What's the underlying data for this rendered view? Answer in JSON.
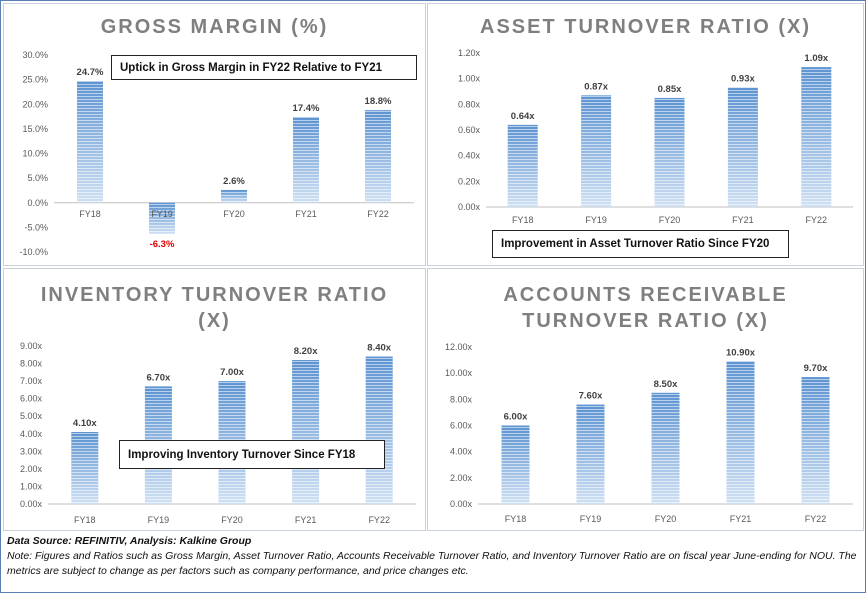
{
  "colors": {
    "bar_top": "#cfe0f3",
    "bar_bottom": "#5d93d1",
    "bar_stripe": "#ffffff",
    "axis": "#bfbfbf",
    "negative_label": "#e00000"
  },
  "chart_data": [
    {
      "id": "gross_margin",
      "type": "bar",
      "title": "GROSS MARGIN (%)",
      "categories": [
        "FY18",
        "FY19",
        "FY20",
        "FY21",
        "FY22"
      ],
      "values": [
        24.7,
        -6.3,
        2.6,
        17.4,
        18.8
      ],
      "data_labels": [
        "24.7%",
        "-6.3%",
        "2.6%",
        "17.4%",
        "18.8%"
      ],
      "ylim": [
        -10,
        30
      ],
      "yticks": [
        -10,
        -5,
        0,
        5,
        10,
        15,
        20,
        25,
        30
      ],
      "ytick_labels": [
        "-10.0%",
        "-5.0%",
        "0.0%",
        "5.0%",
        "10.0%",
        "15.0%",
        "20.0%",
        "25.0%",
        "30.0%"
      ],
      "annotation": "Uptick in Gross Margin in FY22 Relative to FY21"
    },
    {
      "id": "asset_turnover",
      "type": "bar",
      "title": "ASSET TURNOVER RATIO (X)",
      "categories": [
        "FY18",
        "FY19",
        "FY20",
        "FY21",
        "FY22"
      ],
      "values": [
        0.64,
        0.87,
        0.85,
        0.93,
        1.09
      ],
      "data_labels": [
        "0.64x",
        "0.87x",
        "0.85x",
        "0.93x",
        "1.09x"
      ],
      "ylim": [
        0,
        1.2
      ],
      "yticks": [
        0,
        0.2,
        0.4,
        0.6,
        0.8,
        1.0,
        1.2
      ],
      "ytick_labels": [
        "0.00x",
        "0.20x",
        "0.40x",
        "0.60x",
        "0.80x",
        "1.00x",
        "1.20x"
      ],
      "annotation": "Improvement in Asset Turnover Ratio Since FY20"
    },
    {
      "id": "inventory_turnover",
      "type": "bar",
      "title_lines": [
        "INVENTORY TURNOVER RATIO",
        "(X)"
      ],
      "categories": [
        "FY18",
        "FY19",
        "FY20",
        "FY21",
        "FY22"
      ],
      "values": [
        4.1,
        6.7,
        7.0,
        8.2,
        8.4
      ],
      "data_labels": [
        "4.10x",
        "6.70x",
        "7.00x",
        "8.20x",
        "8.40x"
      ],
      "ylim": [
        0,
        9
      ],
      "yticks": [
        0,
        1,
        2,
        3,
        4,
        5,
        6,
        7,
        8,
        9
      ],
      "ytick_labels": [
        "0.00x",
        "1.00x",
        "2.00x",
        "3.00x",
        "4.00x",
        "5.00x",
        "6.00x",
        "7.00x",
        "8.00x",
        "9.00x"
      ],
      "annotation": "Improving Inventory Turnover Since FY18"
    },
    {
      "id": "receivable_turnover",
      "type": "bar",
      "title_lines": [
        "ACCOUNTS RECEIVABLE",
        "TURNOVER RATIO (X)"
      ],
      "categories": [
        "FY18",
        "FY19",
        "FY20",
        "FY21",
        "FY22"
      ],
      "values": [
        6.0,
        7.6,
        8.5,
        10.9,
        9.7
      ],
      "data_labels": [
        "6.00x",
        "7.60x",
        "8.50x",
        "10.90x",
        "9.70x"
      ],
      "ylim": [
        0,
        12
      ],
      "yticks": [
        0,
        2,
        4,
        6,
        8,
        10,
        12
      ],
      "ytick_labels": [
        "0.00x",
        "2.00x",
        "4.00x",
        "6.00x",
        "8.00x",
        "10.00x",
        "12.00x"
      ],
      "annotation": ""
    }
  ],
  "footer": {
    "source": "Data Source: REFINITIV, Analysis: Kalkine Group",
    "note": "Note: Figures and Ratios such as Gross Margin, Asset Turnover Ratio, Accounts Receivable Turnover Ratio, and Inventory Turnover Ratio are on fiscal year June-ending for NOU. The metrics are subject to change as per factors such as company performance, and price changes etc."
  }
}
